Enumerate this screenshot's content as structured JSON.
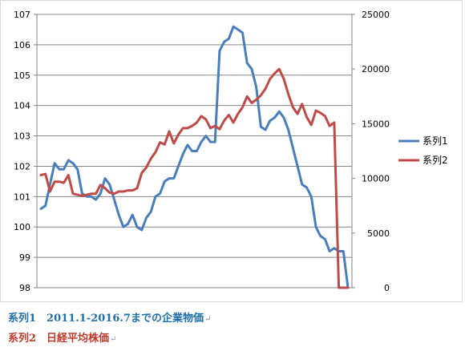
{
  "chart_data": {
    "type": "line",
    "left_axis": {
      "min": 98,
      "max": 107,
      "ticks": [
        98,
        99,
        100,
        101,
        102,
        103,
        104,
        105,
        106,
        107
      ]
    },
    "right_axis": {
      "min": 0,
      "max": 25000,
      "ticks": [
        0,
        5000,
        10000,
        15000,
        20000,
        25000
      ]
    },
    "grid": "horizontal",
    "legend_position": "right",
    "x_count": 68,
    "series": [
      {
        "name": "系列1",
        "axis": "left",
        "color": "#4a7ebb",
        "values": [
          100.6,
          100.7,
          101.4,
          102.1,
          101.9,
          101.9,
          102.2,
          102.1,
          101.9,
          101.1,
          101.0,
          101.0,
          100.9,
          101.1,
          101.6,
          101.4,
          100.9,
          100.4,
          100.0,
          100.1,
          100.4,
          100.0,
          99.9,
          100.3,
          100.5,
          101.0,
          101.1,
          101.5,
          101.6,
          101.6,
          102.0,
          102.4,
          102.7,
          102.5,
          102.5,
          102.8,
          103.0,
          102.8,
          102.8,
          105.8,
          106.1,
          106.2,
          106.6,
          106.5,
          106.4,
          105.4,
          105.2,
          104.6,
          103.3,
          103.2,
          103.5,
          103.6,
          103.8,
          103.6,
          103.2,
          102.6,
          102.0,
          101.4,
          101.3,
          101.0,
          100.0,
          99.7,
          99.6,
          99.2,
          99.3,
          99.2,
          99.2,
          98.0
        ]
      },
      {
        "name": "系列2",
        "axis": "right",
        "color": "#be4b48",
        "values": [
          10300,
          10400,
          8800,
          9700,
          9700,
          9600,
          10300,
          8600,
          8500,
          8400,
          8500,
          8600,
          8600,
          9400,
          9100,
          8700,
          8600,
          8800,
          8800,
          8900,
          8900,
          9100,
          10500,
          11000,
          11800,
          12400,
          13300,
          13100,
          14300,
          13200,
          14000,
          14600,
          14600,
          14800,
          15100,
          15700,
          15400,
          14600,
          14800,
          14500,
          15300,
          15800,
          15100,
          15900,
          16500,
          17500,
          16900,
          17200,
          17600,
          18200,
          19100,
          19600,
          20000,
          19100,
          17700,
          16500,
          15900,
          16800,
          15600,
          14900,
          16200,
          16000,
          15700,
          14800,
          15100,
          0,
          0,
          0
        ]
      }
    ]
  },
  "captions": {
    "line1": "系列1　2011.1-2016.7までの企業物価",
    "line1_color": "#1f6fa8",
    "line2": "系列2　日経平均株価",
    "line2_color": "#c0392b",
    "return_mark": "↵"
  }
}
